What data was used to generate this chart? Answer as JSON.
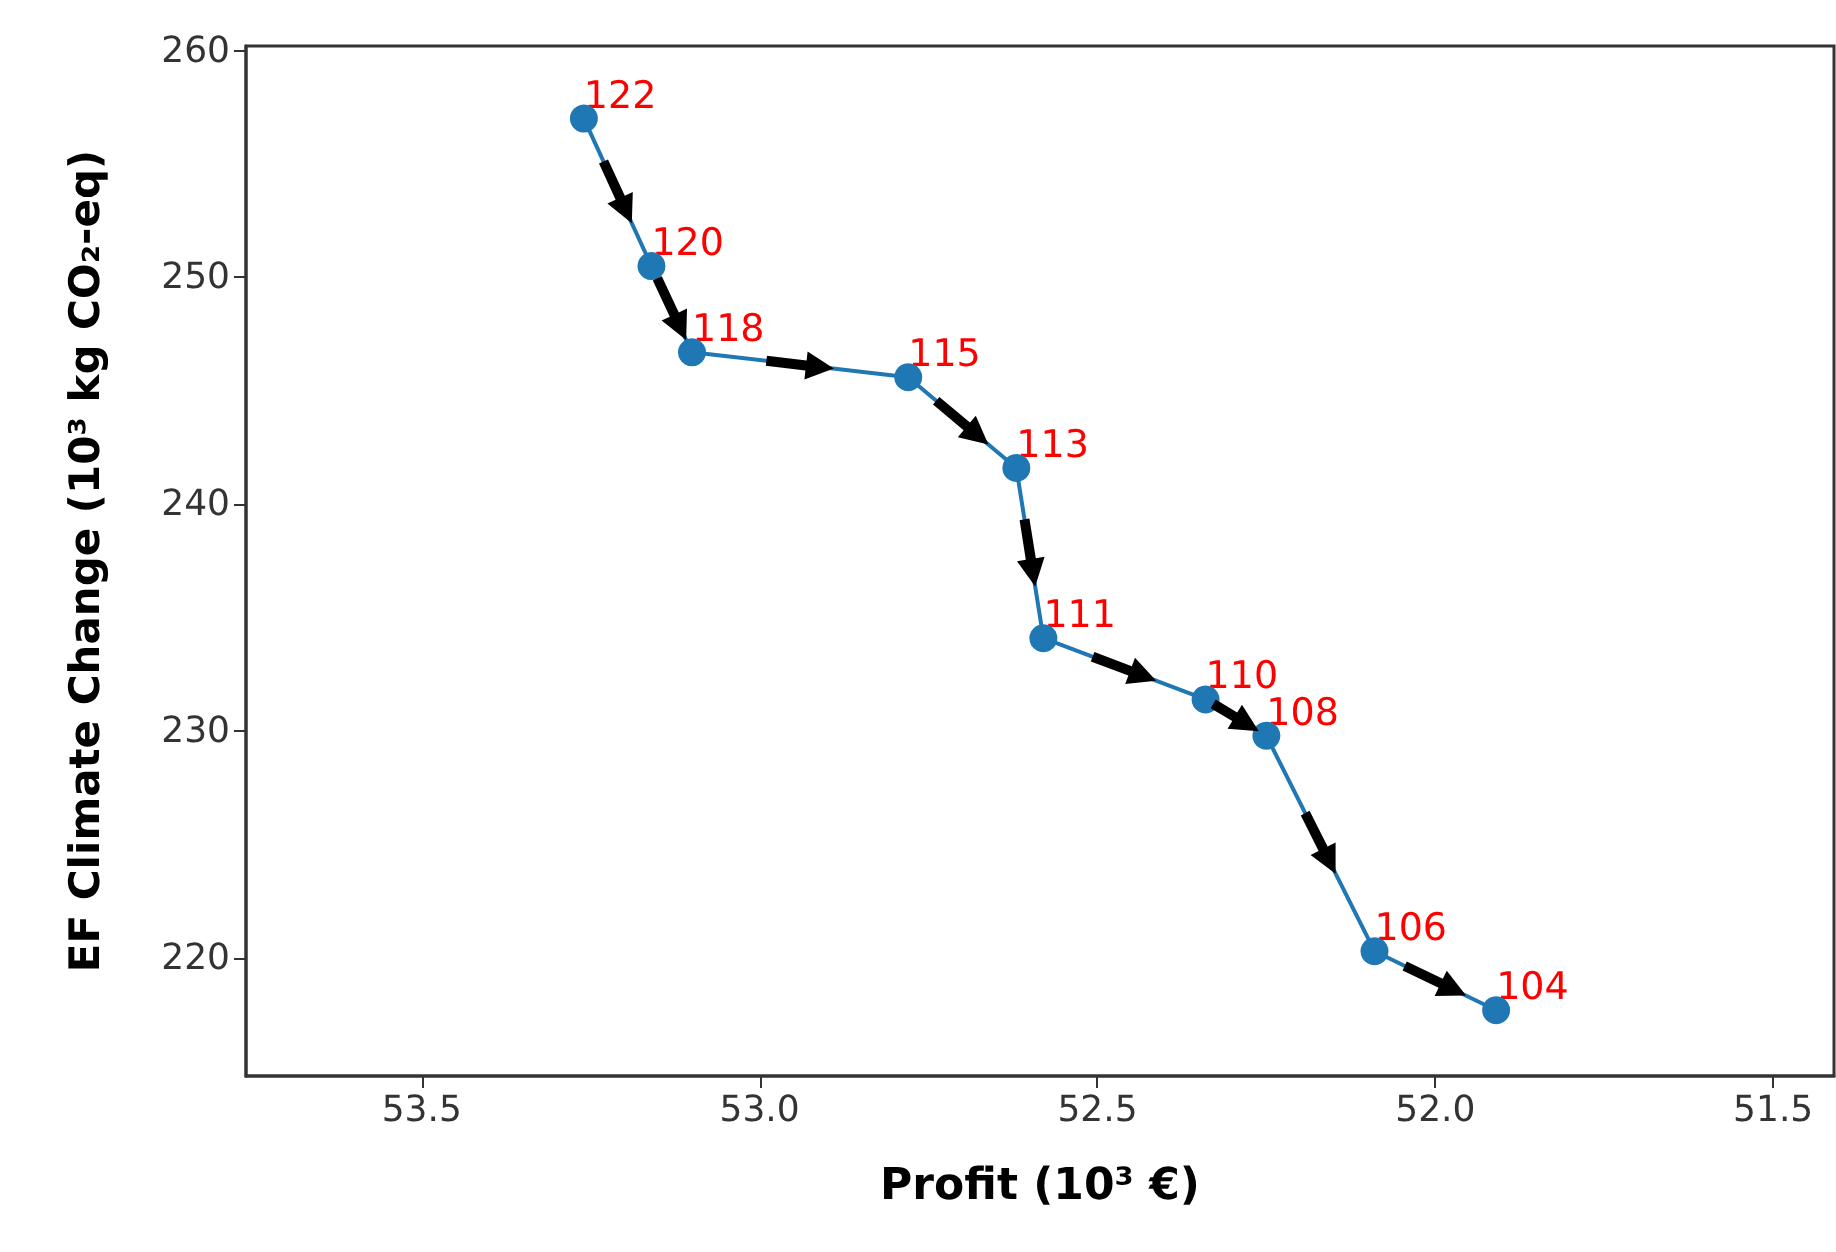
{
  "chart_data": {
    "type": "line",
    "xlabel": "Profit (10³ €)",
    "ylabel": "EF Climate Change (10³ kg CO₂-eq)",
    "x": [
      53.26,
      53.16,
      53.1,
      52.78,
      52.62,
      52.58,
      52.34,
      52.25,
      52.09,
      51.91
    ],
    "series": [
      {
        "color": "#1f77b4",
        "values": [
          257.0,
          250.5,
          246.7,
          245.6,
          241.6,
          234.1,
          231.4,
          229.8,
          220.3,
          217.7
        ]
      }
    ],
    "marker": "circle",
    "line_style": "solid",
    "xlim": [
      53.76,
      51.41
    ],
    "xticks": [
      53.5,
      {
        "value": 53,
        "label": "53.0"
      },
      52.5,
      {
        "value": 52,
        "label": "52.0"
      },
      51.5
    ],
    "ylim": [
      214.8,
      260.2
    ],
    "yticks": [
      220,
      230,
      240,
      250,
      260
    ],
    "annotations": [
      {
        "text": "122",
        "x": 53.26,
        "y": 257.0
      },
      {
        "text": "120",
        "x": 53.16,
        "y": 250.5
      },
      {
        "text": "118",
        "x": 53.1,
        "y": 246.7
      },
      {
        "text": "115",
        "x": 52.78,
        "y": 245.6
      },
      {
        "text": "113",
        "x": 52.62,
        "y": 241.6
      },
      {
        "text": "111",
        "x": 52.58,
        "y": 234.1
      },
      {
        "text": "110",
        "x": 52.34,
        "y": 231.4
      },
      {
        "text": "108",
        "x": 52.25,
        "y": 229.8
      },
      {
        "text": "106",
        "x": 52.09,
        "y": 220.3
      },
      {
        "text": "104",
        "x": 51.91,
        "y": 217.7
      }
    ]
  }
}
